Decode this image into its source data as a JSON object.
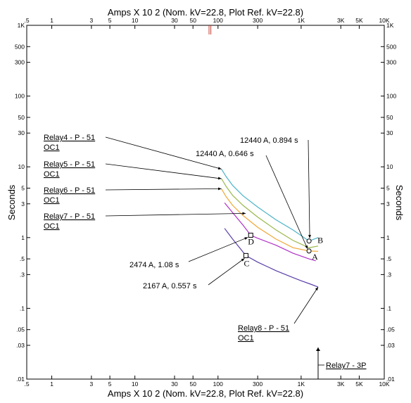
{
  "chart_data": {
    "type": "line",
    "title_top": "Amps  X  10   2 (Nom. kV=22.8, Plot Ref. kV=22.8)",
    "title_bottom": "Amps  X  10   2 (Nom. kV=22.8, Plot Ref. kV=22.8)",
    "ylabel": "Seconds",
    "xscale": "log",
    "yscale": "log",
    "xlim": [
      0.5,
      10000
    ],
    "ylim": [
      0.01,
      1000
    ],
    "x_ticks": [
      {
        "v": 0.5,
        "t": ".5"
      },
      {
        "v": 1,
        "t": "1"
      },
      {
        "v": 3,
        "t": "3"
      },
      {
        "v": 5,
        "t": "5"
      },
      {
        "v": 10,
        "t": "10"
      },
      {
        "v": 30,
        "t": "30"
      },
      {
        "v": 50,
        "t": "50"
      },
      {
        "v": 100,
        "t": "100"
      },
      {
        "v": 300,
        "t": "300"
      },
      {
        "v": 1000,
        "t": "1K"
      },
      {
        "v": 3000,
        "t": "3K"
      },
      {
        "v": 5000,
        "t": "5K"
      },
      {
        "v": 10000,
        "t": "10K"
      }
    ],
    "y_ticks": [
      {
        "v": 1000,
        "t": "1K"
      },
      {
        "v": 500,
        "t": "500"
      },
      {
        "v": 300,
        "t": "300"
      },
      {
        "v": 100,
        "t": "100"
      },
      {
        "v": 50,
        "t": "50"
      },
      {
        "v": 30,
        "t": "30"
      },
      {
        "v": 10,
        "t": "10"
      },
      {
        "v": 5,
        "t": "5"
      },
      {
        "v": 3,
        "t": "3"
      },
      {
        "v": 1,
        "t": "1"
      },
      {
        "v": 0.5,
        "t": ".5"
      },
      {
        "v": 0.3,
        "t": ".3"
      },
      {
        "v": 0.1,
        "t": ".1"
      },
      {
        "v": 0.05,
        "t": ".05"
      },
      {
        "v": 0.03,
        "t": ".03"
      },
      {
        "v": 0.01,
        "t": ".01"
      }
    ],
    "series": [
      {
        "name": "Relay4 - P - 51\nOC1",
        "color": "#4ab3c8",
        "x": [
          110,
          125,
          150,
          200,
          300,
          500,
          800,
          1244,
          1600
        ],
        "y": [
          9.3,
          7.3,
          5.45,
          3.9,
          2.7,
          1.78,
          1.28,
          0.894,
          1.0
        ]
      },
      {
        "name": "Relay5 - P - 51\nOC1",
        "color": "#9ab84a",
        "x": [
          110,
          125,
          150,
          200,
          300,
          500,
          800,
          1244,
          1600
        ],
        "y": [
          6.8,
          5.3,
          3.95,
          2.85,
          1.95,
          1.28,
          0.91,
          0.72,
          0.76
        ]
      },
      {
        "name": "Relay6 - P - 51\nOC1",
        "color": "#f0a838",
        "x": [
          110,
          125,
          150,
          200,
          300,
          500,
          800,
          1244,
          1600
        ],
        "y": [
          4.9,
          3.8,
          2.85,
          2.05,
          1.4,
          0.95,
          0.72,
          0.646,
          0.64
        ]
      },
      {
        "name": "Relay7 - P - 51\nOC1",
        "color": "#b030c8",
        "x": [
          120,
          150,
          200,
          247.4,
          300,
          500,
          800,
          1244,
          1500
        ],
        "y": [
          3.1,
          2.25,
          1.5,
          1.08,
          0.98,
          0.78,
          0.6,
          0.5,
          0.47
        ]
      },
      {
        "name": "Relay8 - P - 51\nOC1",
        "color": "#5a3ea8",
        "x": [
          120,
          150,
          216.7,
          300,
          500,
          800,
          1000,
          1300,
          1600
        ],
        "y": [
          1.35,
          0.95,
          0.557,
          0.45,
          0.34,
          0.272,
          0.245,
          0.22,
          0.2
        ]
      }
    ],
    "relay7_3p": {
      "label": "Relay7 - 3P",
      "x": 1600,
      "y_top": 0.028,
      "y_bottom": 0.01
    },
    "points": [
      {
        "mark": "A",
        "x": 1244,
        "y": 0.646,
        "text": "12440 A, 0.646 s"
      },
      {
        "mark": "B",
        "x": 1244,
        "y": 0.894,
        "text": "12440 A, 0.894 s"
      },
      {
        "mark": "C",
        "x": 216.7,
        "y": 0.557,
        "text": "2167 A, 0.557 s"
      },
      {
        "mark": "D",
        "x": 247.4,
        "y": 1.08,
        "text": "2474 A, 1.08 s"
      }
    ],
    "grid": false,
    "legend": "callout labels on left with leader lines"
  }
}
